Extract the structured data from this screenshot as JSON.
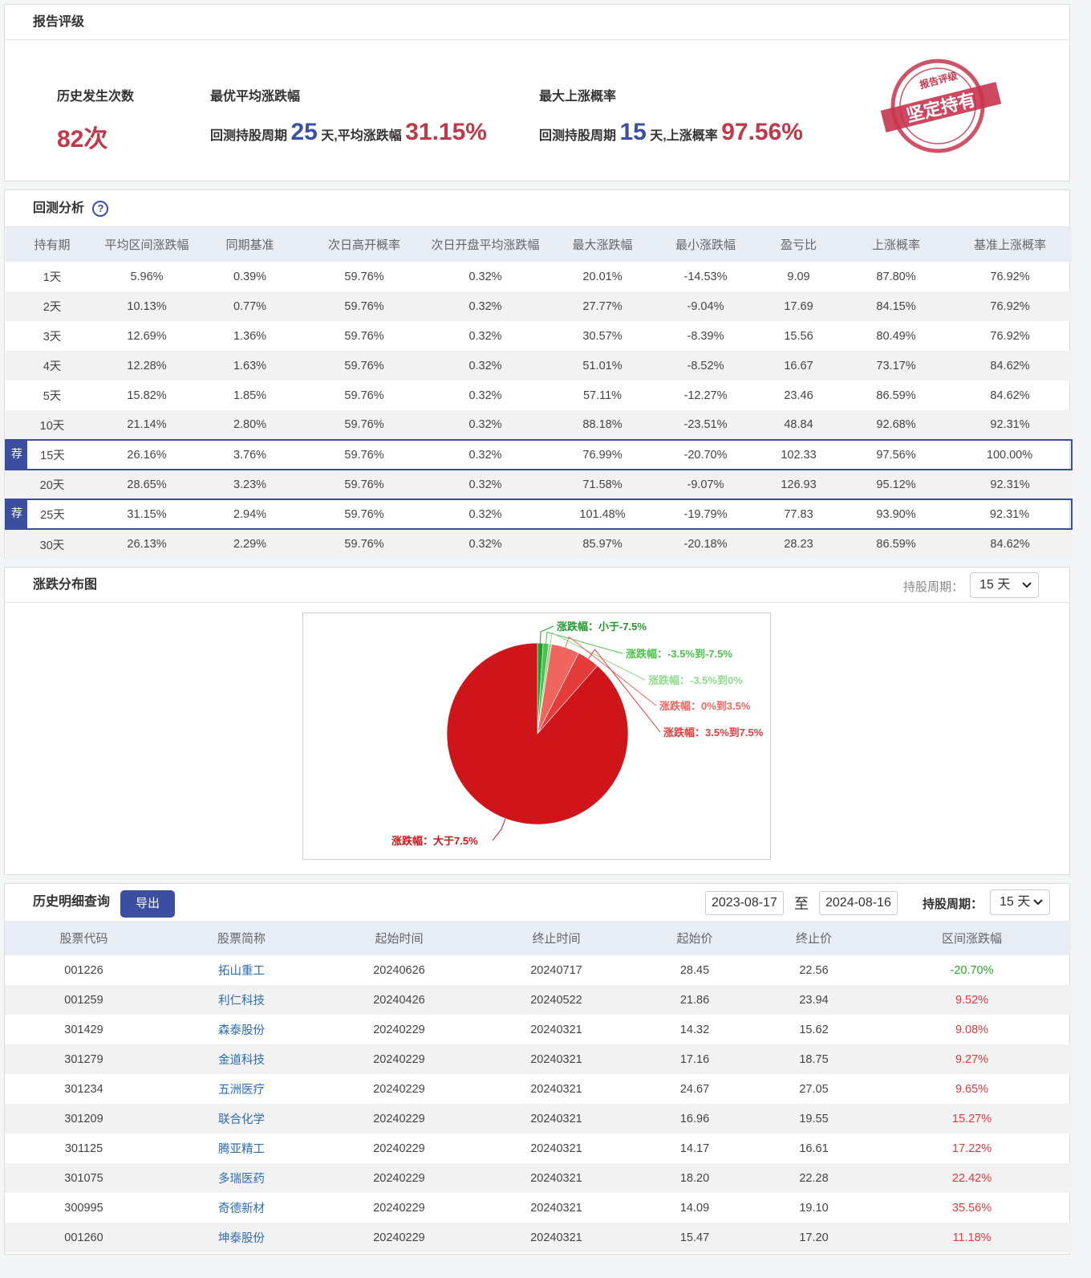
{
  "report_rating": {
    "title": "报告评级",
    "occurrences": {
      "label": "历史发生次数",
      "value": "82次"
    },
    "best_avg": {
      "label": "最优平均涨跌幅",
      "prefix": "回测持股周期",
      "days": "25",
      "mid": "天,平均涨跌幅",
      "value": "31.15%"
    },
    "max_up": {
      "label": "最大上涨概率",
      "prefix": "回测持股周期",
      "days": "15",
      "mid": "天,上涨概率",
      "value": "97.56%"
    },
    "stamp": {
      "top": "报告评级",
      "main": "坚定持有"
    }
  },
  "backtest": {
    "title": "回测分析",
    "help": "?",
    "table": {
      "header": [
        "持有期",
        "平均区间涨跌幅",
        "同期基准",
        "次日高开概率",
        "次日开盘平均涨跌幅",
        "最大涨跌幅",
        "最小涨跌幅",
        "盈亏比",
        "上涨概率",
        "基准上涨概率"
      ],
      "rows": [
        {
          "cells": [
            "1天",
            "5.96%",
            "0.39%",
            "59.76%",
            "0.32%",
            "20.01%",
            "-14.53%",
            "9.09",
            "87.80%",
            "76.92%"
          ]
        },
        {
          "cells": [
            "2天",
            "10.13%",
            "0.77%",
            "59.76%",
            "0.32%",
            "27.77%",
            "-9.04%",
            "17.69",
            "84.15%",
            "76.92%"
          ]
        },
        {
          "cells": [
            "3天",
            "12.69%",
            "1.36%",
            "59.76%",
            "0.32%",
            "30.57%",
            "-8.39%",
            "15.56",
            "80.49%",
            "76.92%"
          ]
        },
        {
          "cells": [
            "4天",
            "12.28%",
            "1.63%",
            "59.76%",
            "0.32%",
            "51.01%",
            "-8.52%",
            "16.67",
            "73.17%",
            "84.62%"
          ]
        },
        {
          "cells": [
            "5天",
            "15.82%",
            "1.85%",
            "59.76%",
            "0.32%",
            "57.11%",
            "-12.27%",
            "23.46",
            "86.59%",
            "84.62%"
          ]
        },
        {
          "cells": [
            "10天",
            "21.14%",
            "2.80%",
            "59.76%",
            "0.32%",
            "88.18%",
            "-23.51%",
            "48.84",
            "92.68%",
            "92.31%"
          ]
        },
        {
          "cells": [
            "15天",
            "26.16%",
            "3.76%",
            "59.76%",
            "0.32%",
            "76.99%",
            "-20.70%",
            "102.33",
            "97.56%",
            "100.00%"
          ],
          "tag": "荐"
        },
        {
          "cells": [
            "20天",
            "28.65%",
            "3.23%",
            "59.76%",
            "0.32%",
            "71.58%",
            "-9.07%",
            "126.93",
            "95.12%",
            "92.31%"
          ]
        },
        {
          "cells": [
            "25天",
            "31.15%",
            "2.94%",
            "59.76%",
            "0.32%",
            "101.48%",
            "-19.79%",
            "77.83",
            "93.90%",
            "92.31%"
          ],
          "tag": "荐"
        },
        {
          "cells": [
            "30天",
            "26.13%",
            "2.29%",
            "59.76%",
            "0.32%",
            "85.97%",
            "-20.18%",
            "28.23",
            "86.59%",
            "84.62%"
          ]
        }
      ]
    }
  },
  "distribution": {
    "title": "涨跌分布图",
    "period_label": "持股周期：",
    "period": "15 天"
  },
  "chart_data": {
    "type": "pie",
    "categories": [
      "涨跌幅：小于-7.5%",
      "涨跌幅：-3.5%到-7.5%",
      "涨跌幅：-3.5%到0%",
      "涨跌幅：0%到3.5%",
      "涨跌幅：3.5%到7.5%",
      "涨跌幅：大于7.5%"
    ],
    "values": [
      1,
      1,
      0.5,
      5,
      4,
      88.5
    ],
    "colors": [
      "#1f9a2c",
      "#4cc24c",
      "#8fdc8f",
      "#f0665e",
      "#e63b3b",
      "#cf1519"
    ]
  },
  "history": {
    "title": "历史明细查询",
    "export": "导出",
    "start": "2023-08-17",
    "to": "至",
    "end": "2024-08-16",
    "period_label": "持股周期：",
    "period": "15 天",
    "table": {
      "header": [
        "股票代码",
        "股票简称",
        "起始时间",
        "终止时间",
        "起始价",
        "终止价",
        "区间涨跌幅"
      ],
      "rows": [
        [
          "001226",
          "拓山重工",
          "20240626",
          "20240717",
          "28.45",
          "22.56",
          "-20.70%"
        ],
        [
          "001259",
          "利仁科技",
          "20240426",
          "20240522",
          "21.86",
          "23.94",
          "9.52%"
        ],
        [
          "301429",
          "森泰股份",
          "20240229",
          "20240321",
          "14.32",
          "15.62",
          "9.08%"
        ],
        [
          "301279",
          "金道科技",
          "20240229",
          "20240321",
          "17.16",
          "18.75",
          "9.27%"
        ],
        [
          "301234",
          "五洲医疗",
          "20240229",
          "20240321",
          "24.67",
          "27.05",
          "9.65%"
        ],
        [
          "301209",
          "联合化学",
          "20240229",
          "20240321",
          "16.96",
          "19.55",
          "15.27%"
        ],
        [
          "301125",
          "腾亚精工",
          "20240229",
          "20240321",
          "14.17",
          "16.61",
          "17.22%"
        ],
        [
          "301075",
          "多瑞医药",
          "20240229",
          "20240321",
          "18.20",
          "22.28",
          "22.42%"
        ],
        [
          "300995",
          "奇德新材",
          "20240229",
          "20240321",
          "14.09",
          "19.10",
          "35.56%"
        ],
        [
          "001260",
          "坤泰股份",
          "20240229",
          "20240321",
          "15.47",
          "17.20",
          "11.18%"
        ]
      ]
    }
  }
}
